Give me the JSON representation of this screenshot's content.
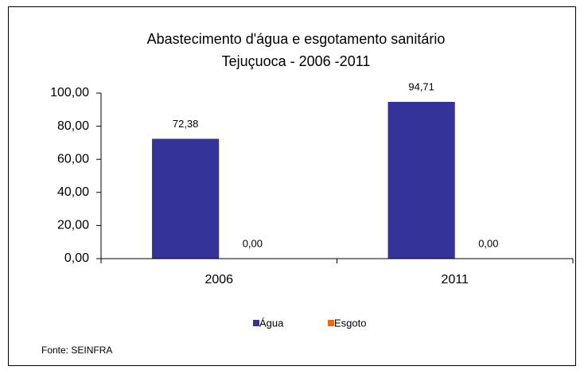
{
  "chart_data": {
    "type": "bar",
    "title": "Abastecimento d'água e esgotamento sanitário",
    "subtitle": "Tejuçuoca - 2006 -2011",
    "categories": [
      "2006",
      "2011"
    ],
    "series": [
      {
        "name": "Água",
        "color": "#333399",
        "values": [
          72.38,
          94.71
        ],
        "value_labels": [
          "72,38",
          "94,71"
        ]
      },
      {
        "name": "Esgoto",
        "color": "#FF6600",
        "values": [
          0,
          0
        ],
        "value_labels": [
          "0,00",
          "0,00"
        ]
      }
    ],
    "ylim": [
      0,
      100
    ],
    "yticks": [
      {
        "value": 0,
        "label": "0,00"
      },
      {
        "value": 20,
        "label": "20,00"
      },
      {
        "value": 40,
        "label": "40,00"
      },
      {
        "value": 60,
        "label": "60,00"
      },
      {
        "value": 80,
        "label": "80,00"
      },
      {
        "value": 100,
        "label": "100,00"
      }
    ],
    "legend": "bottom",
    "source": "Fonte: SEINFRA"
  }
}
